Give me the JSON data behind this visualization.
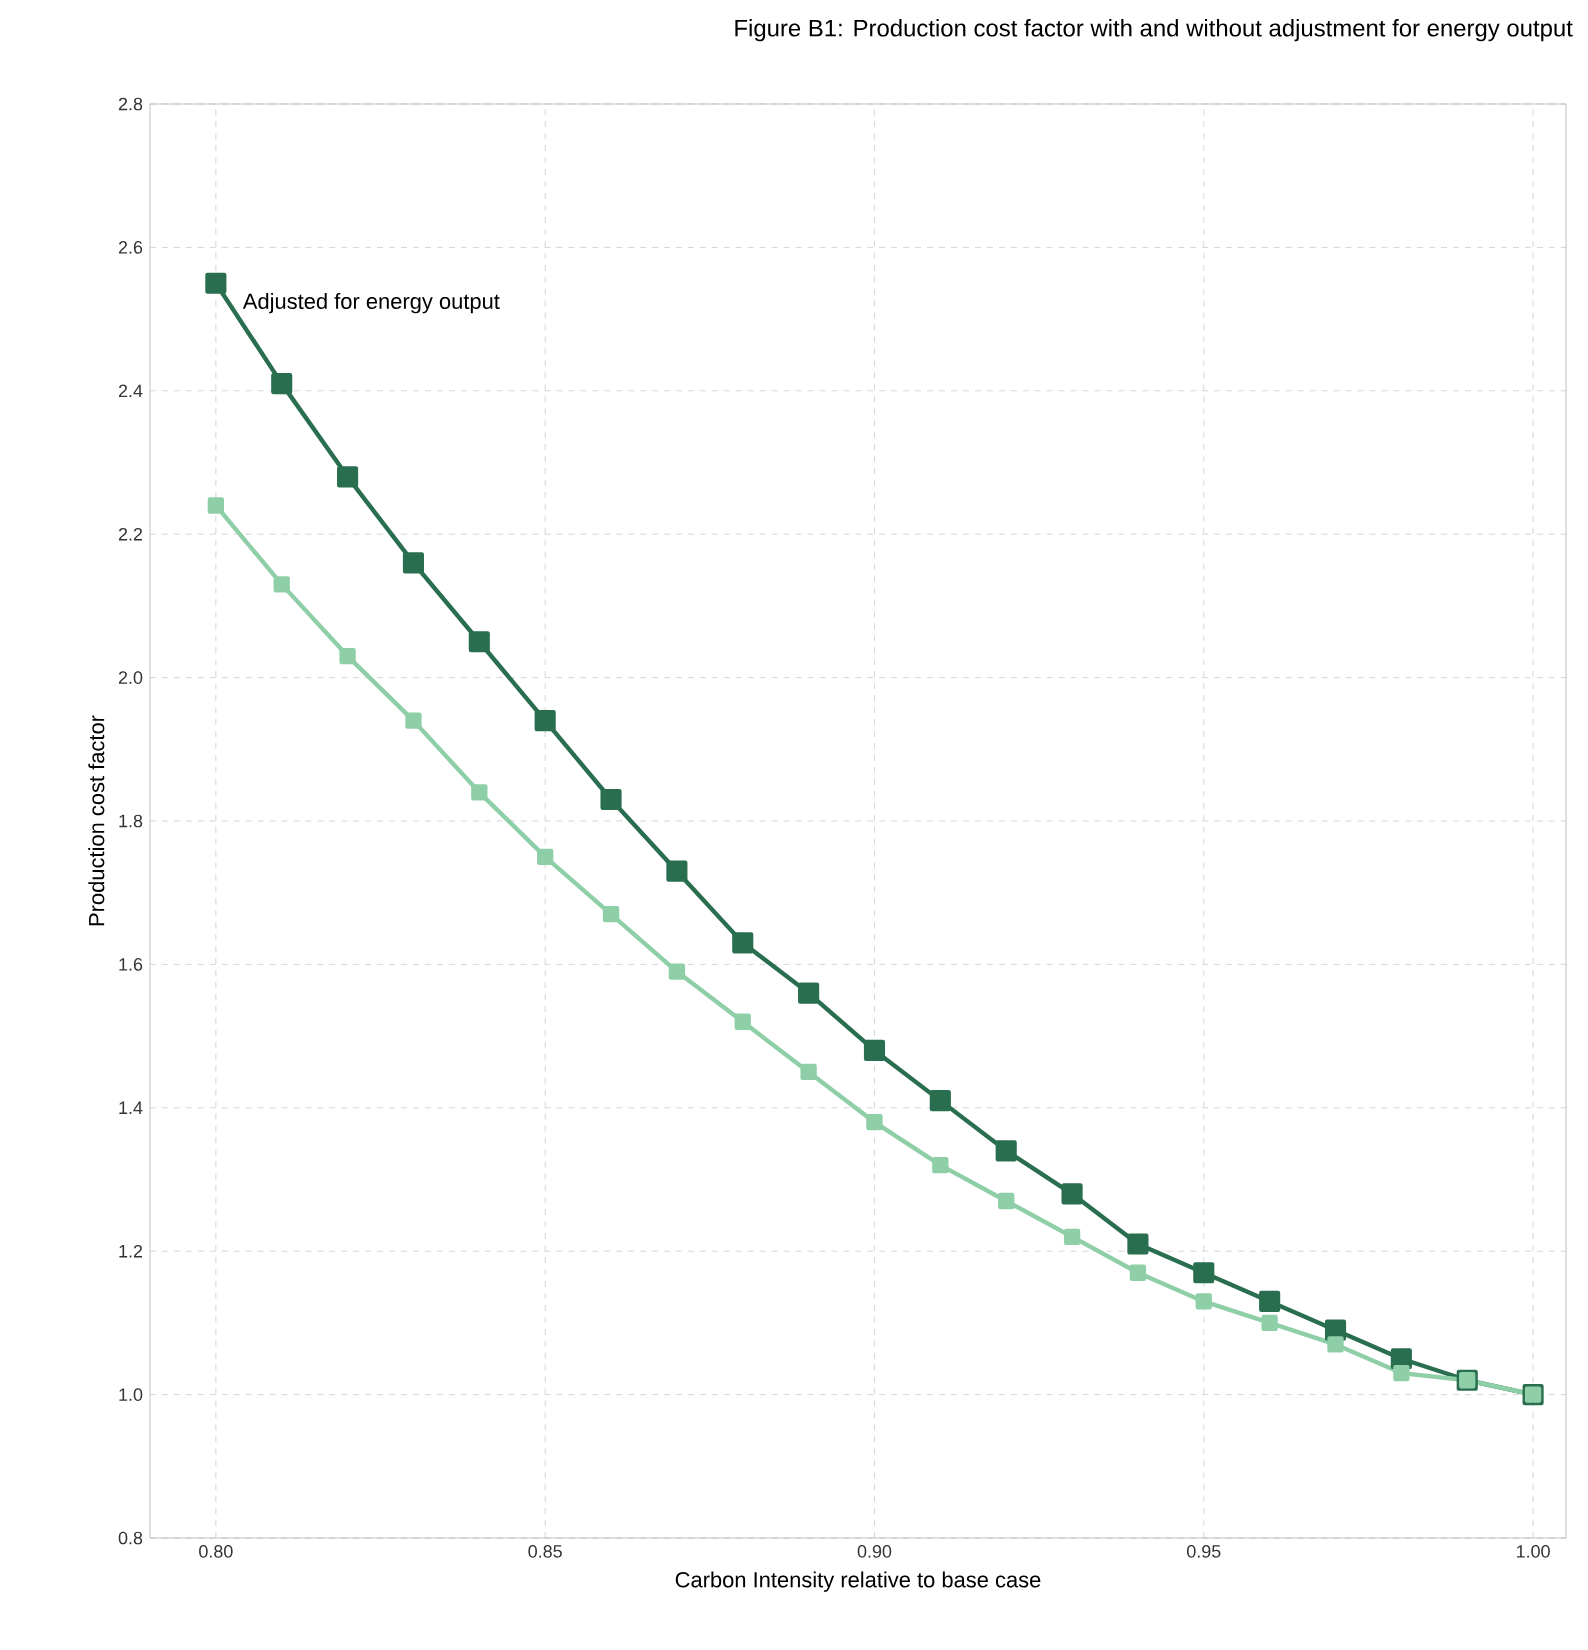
{
  "chart_data": {
    "type": "line",
    "title": "Figure B1: Production cost factor with and without adjustment for energy output",
    "xlabel": "Carbon Intensity relative to base case",
    "ylabel": "Production cost factor",
    "x": [
      0.8,
      0.81,
      0.82,
      0.83,
      0.84,
      0.85,
      0.86,
      0.87,
      0.88,
      0.89,
      0.9,
      0.91,
      0.92,
      0.93,
      0.94,
      0.95,
      0.96,
      0.97,
      0.98,
      0.99,
      1.0
    ],
    "series": [
      {
        "name": "Adjusted for energy output",
        "color": "#2a6e50",
        "values": [
          2.55,
          2.41,
          2.28,
          2.16,
          2.05,
          1.94,
          1.83,
          1.73,
          1.63,
          1.56,
          1.48,
          1.41,
          1.34,
          1.28,
          1.21,
          1.17,
          1.13,
          1.09,
          1.05,
          1.02,
          1.0
        ]
      },
      {
        "color": "#8fcfa8",
        "values": [
          2.24,
          2.13,
          2.03,
          1.94,
          1.84,
          1.75,
          1.67,
          1.59,
          1.52,
          1.45,
          1.38,
          1.32,
          1.27,
          1.22,
          1.17,
          1.13,
          1.1,
          1.07,
          1.03,
          1.02,
          1.0
        ]
      }
    ],
    "xlim": [
      0.79,
      1.005
    ],
    "ylim": [
      0.8,
      2.8
    ],
    "xticks": [
      {
        "value": 0.8,
        "label": "0.80"
      },
      {
        "value": 0.85,
        "label": "0.85"
      },
      {
        "value": 0.9,
        "label": "0.90"
      },
      {
        "value": 0.95,
        "label": "0.95"
      },
      {
        "value": 1.0,
        "label": "1.00"
      }
    ],
    "yticks": [
      {
        "value": 0.8,
        "label": "0.8"
      },
      {
        "value": 1.0,
        "label": "1.0"
      },
      {
        "value": 1.2,
        "label": "1.2"
      },
      {
        "value": 1.4,
        "label": "1.4"
      },
      {
        "value": 1.6,
        "label": "1.6"
      },
      {
        "value": 1.8,
        "label": "1.8"
      },
      {
        "value": 2.0,
        "label": "2.0"
      },
      {
        "value": 2.2,
        "label": "2.2"
      },
      {
        "value": 2.4,
        "label": "2.4"
      },
      {
        "value": 2.6,
        "label": "2.6"
      },
      {
        "value": 2.8,
        "label": "2.8"
      }
    ],
    "grid": true,
    "legend": false,
    "marker": "square",
    "line_style": "solid"
  }
}
